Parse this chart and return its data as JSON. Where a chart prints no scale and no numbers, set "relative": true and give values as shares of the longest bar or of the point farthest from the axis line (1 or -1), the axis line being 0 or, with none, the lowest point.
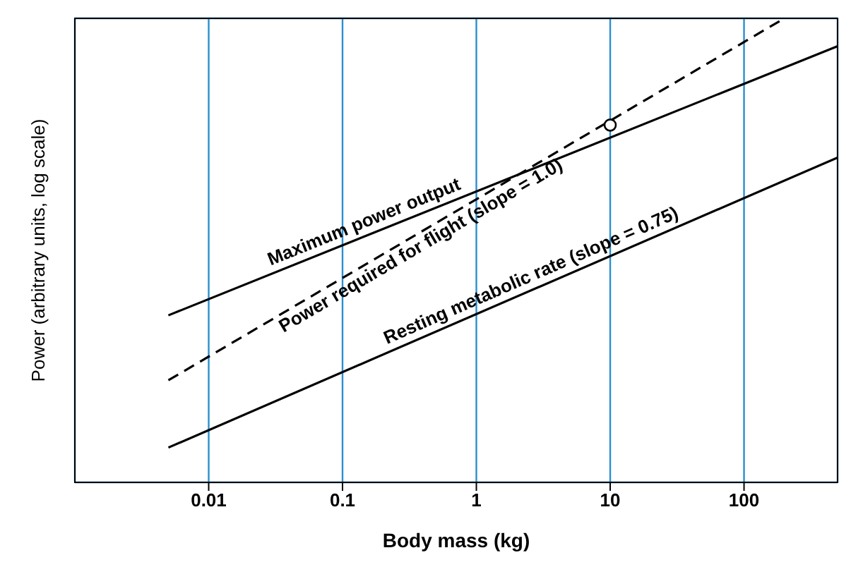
{
  "chart_data": {
    "type": "line",
    "xlabel": "Body mass (kg)",
    "ylabel": "Power (arbitrary units, log scale)",
    "relative": true,
    "log": "x",
    "xlim": [
      0.001,
      500
    ],
    "xticks": [
      0.01,
      0.1,
      1,
      10,
      100
    ],
    "grid": true,
    "series": [
      {
        "name": "Maximum power output",
        "color": "#000000",
        "x": [
          0.005,
          500
        ],
        "values": [
          0.36,
          0.94
        ],
        "line_style": "solid"
      },
      {
        "name": "Power required for flight (slope = 1.0)",
        "color": "#000000",
        "x": [
          0.005,
          200
        ],
        "values": [
          0.22,
          1
        ],
        "line_style": "dashed"
      },
      {
        "name": "Resting metabolic rate (slope = 0.75)",
        "color": "#000000",
        "x": [
          0.005,
          500
        ],
        "values": [
          0.075,
          0.7
        ],
        "line_style": "solid"
      },
      {
        "type": "scatter",
        "color": "#000000",
        "x": [
          10
        ],
        "values": [
          0.77
        ],
        "marker": "circle"
      }
    ]
  }
}
